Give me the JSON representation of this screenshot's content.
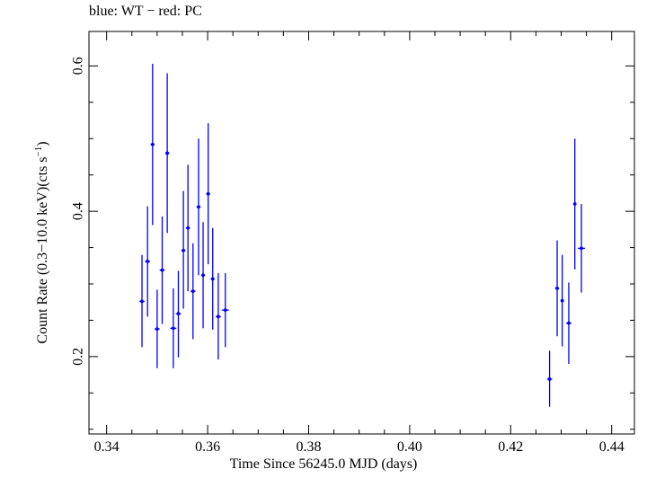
{
  "chart_data": {
    "type": "scatter",
    "title": "blue: WT − red: PC",
    "xlabel": "Time Since 56245.0 MJD (days)",
    "ylabel": {
      "text": "Count Rate (0.3−10.0 keV)(cts s",
      "superscript": "−1",
      "suffix": ")"
    },
    "xlim": [
      0.3365,
      0.4445
    ],
    "ylim": [
      0.0935,
      0.6475
    ],
    "xticks": [
      {
        "value": 0.34,
        "label": "0.34"
      },
      {
        "value": 0.36,
        "label": "0.36"
      },
      {
        "value": 0.38,
        "label": "0.38"
      },
      {
        "value": 0.4,
        "label": "0.40"
      },
      {
        "value": 0.42,
        "label": "0.42"
      },
      {
        "value": 0.44,
        "label": "0.44"
      }
    ],
    "yticks": [
      {
        "value": 0.2,
        "label": "0.2"
      },
      {
        "value": 0.4,
        "label": "0.4"
      },
      {
        "value": 0.6,
        "label": "0.6"
      }
    ],
    "grid": false,
    "legend": "none",
    "series": [
      {
        "color": "#0000ff",
        "points": [
          {
            "x": 0.347,
            "xerr": 0.0005,
            "y": 0.276,
            "ylo": 0.213,
            "yhi": 0.34
          },
          {
            "x": 0.3481,
            "xerr": 0.0005,
            "y": 0.331,
            "ylo": 0.255,
            "yhi": 0.407
          },
          {
            "x": 0.3491,
            "xerr": 0.0004,
            "y": 0.492,
            "ylo": 0.381,
            "yhi": 0.603
          },
          {
            "x": 0.35,
            "xerr": 0.0005,
            "y": 0.238,
            "ylo": 0.184,
            "yhi": 0.292
          },
          {
            "x": 0.351,
            "xerr": 0.0005,
            "y": 0.319,
            "ylo": 0.245,
            "yhi": 0.393
          },
          {
            "x": 0.352,
            "xerr": 0.0004,
            "y": 0.48,
            "ylo": 0.37,
            "yhi": 0.59
          },
          {
            "x": 0.3532,
            "xerr": 0.0006,
            "y": 0.239,
            "ylo": 0.184,
            "yhi": 0.294
          },
          {
            "x": 0.3542,
            "xerr": 0.0005,
            "y": 0.259,
            "ylo": 0.199,
            "yhi": 0.318
          },
          {
            "x": 0.3552,
            "xerr": 0.0004,
            "y": 0.346,
            "ylo": 0.266,
            "yhi": 0.428
          },
          {
            "x": 0.3561,
            "xerr": 0.0004,
            "y": 0.377,
            "ylo": 0.29,
            "yhi": 0.464
          },
          {
            "x": 0.3571,
            "xerr": 0.0005,
            "y": 0.29,
            "ylo": 0.224,
            "yhi": 0.356
          },
          {
            "x": 0.3582,
            "xerr": 0.0004,
            "y": 0.406,
            "ylo": 0.312,
            "yhi": 0.5
          },
          {
            "x": 0.3591,
            "xerr": 0.0004,
            "y": 0.312,
            "ylo": 0.239,
            "yhi": 0.385
          },
          {
            "x": 0.3601,
            "xerr": 0.0004,
            "y": 0.424,
            "ylo": 0.327,
            "yhi": 0.521
          },
          {
            "x": 0.361,
            "xerr": 0.0004,
            "y": 0.307,
            "ylo": 0.237,
            "yhi": 0.377
          },
          {
            "x": 0.3621,
            "xerr": 0.0005,
            "y": 0.255,
            "ylo": 0.196,
            "yhi": 0.315
          },
          {
            "x": 0.3635,
            "xerr": 0.0007,
            "y": 0.264,
            "ylo": 0.213,
            "yhi": 0.315
          },
          {
            "x": 0.4277,
            "xerr": 0.0005,
            "y": 0.169,
            "ylo": 0.131,
            "yhi": 0.208
          },
          {
            "x": 0.4292,
            "xerr": 0.0004,
            "y": 0.294,
            "ylo": 0.228,
            "yhi": 0.36
          },
          {
            "x": 0.4302,
            "xerr": 0.0003,
            "y": 0.277,
            "ylo": 0.214,
            "yhi": 0.34
          },
          {
            "x": 0.4315,
            "xerr": 0.0005,
            "y": 0.246,
            "ylo": 0.19,
            "yhi": 0.302
          },
          {
            "x": 0.4327,
            "xerr": 0.0003,
            "y": 0.41,
            "ylo": 0.32,
            "yhi": 0.5
          },
          {
            "x": 0.434,
            "xerr": 0.0007,
            "y": 0.349,
            "ylo": 0.288,
            "yhi": 0.41
          }
        ]
      }
    ]
  }
}
